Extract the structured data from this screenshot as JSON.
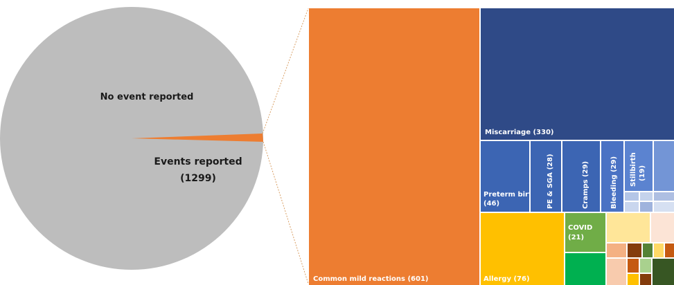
{
  "chart_data": [
    {
      "type": "pie",
      "slices": [
        {
          "label": "No event reported",
          "value": null
        },
        {
          "label": "Events reported",
          "value": 1299,
          "value_label": "(1299)"
        }
      ],
      "colors": {
        "no_event": "#bdbdbd",
        "events": "#ed7d31"
      }
    },
    {
      "type": "treemap",
      "items": [
        {
          "label": "Common mild reactions",
          "value": 601,
          "value_label": "(601)",
          "color": "#ed7d31"
        },
        {
          "label": "Miscarriage",
          "value": 330,
          "value_label": "(330)",
          "color": "#2f4a87"
        },
        {
          "label": "Allergy",
          "value": 76,
          "value_label": "(76)",
          "color": "#ffc000"
        },
        {
          "label": "Preterm birth",
          "value": 46,
          "value_label": "(46)",
          "color": "#3c65b3"
        },
        {
          "label": "PE & SGA",
          "value": 28,
          "value_label": "(28)",
          "color": "#3c65b3"
        },
        {
          "label": "Cramps",
          "value": 29,
          "value_label": "(29)",
          "color": "#3c65b3"
        },
        {
          "label": "Bleeding",
          "value": 29,
          "value_label": "(29)",
          "color": "#4a72c4"
        },
        {
          "label": "Stillbirth",
          "value": 19,
          "value_label": "(19)",
          "color": "#5b83d0"
        },
        {
          "label": "COVID",
          "value": 21,
          "value_label": "(21)",
          "color": "#70ad47"
        }
      ]
    }
  ]
}
